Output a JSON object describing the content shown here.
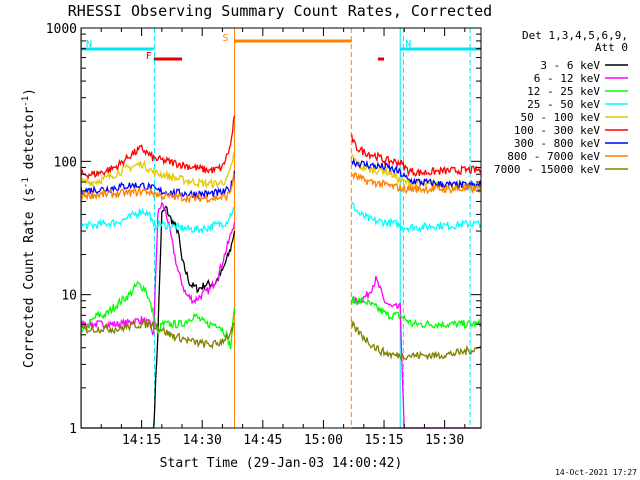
{
  "title": "RHESSI Observing Summary Count Rates, Corrected",
  "footer_date": "14-Oct-2021 17:27",
  "chart_data": {
    "type": "line",
    "title": "RHESSI Observing Summary Count Rates, Corrected",
    "xlabel": "Start Time (29-Jan-03 14:00:42)",
    "ylabel": "Corrected Count Rate (s⁻¹ detector⁻¹)",
    "ylabel_main": "Corrected Count Rate (s",
    "ylabel_exp1": "-1",
    "ylabel_mid": " detector",
    "ylabel_exp2": "-1",
    "ylabel_end": ")",
    "yscale": "log",
    "ylim": [
      1,
      1000
    ],
    "xlim_minutes": [
      0,
      99
    ],
    "x_ticks": [
      {
        "minute": 15,
        "label": "14:15"
      },
      {
        "minute": 30,
        "label": "14:30"
      },
      {
        "minute": 45,
        "label": "14:45"
      },
      {
        "minute": 60,
        "label": "15:00"
      },
      {
        "minute": 75,
        "label": "15:15"
      },
      {
        "minute": 90,
        "label": "15:30"
      }
    ],
    "y_ticks": [
      {
        "value": 1,
        "label": "1"
      },
      {
        "value": 10,
        "label": "10"
      },
      {
        "value": 100,
        "label": "100"
      },
      {
        "value": 1000,
        "label": "1000"
      }
    ],
    "legend_header": [
      "Det 1,3,4,5,6,9,",
      "Att 0"
    ],
    "flags": [
      {
        "label": "N",
        "color": "#00e5ee",
        "start": 0,
        "end": 18
      },
      {
        "label": "N",
        "color": "#00e5ee",
        "start": 79,
        "end": 99
      },
      {
        "label": "F",
        "color": "#e00000",
        "start": 18,
        "end": 25
      },
      {
        "label": "",
        "color": "#e00000",
        "start": 73.5,
        "end": 75
      },
      {
        "label": "S",
        "color": "#ff8000",
        "start": 38,
        "end": 67
      }
    ],
    "vlines": [
      {
        "minute": 18.2,
        "color": "#00e5ee",
        "dash": true
      },
      {
        "minute": 38.0,
        "color": "#ff8000",
        "dash": false
      },
      {
        "minute": 66.9,
        "color": "#ff8000",
        "dash": true
      },
      {
        "minute": 79.0,
        "color": "#00e5ee",
        "dash": false
      },
      {
        "minute": 79.8,
        "color": "#00e5ee",
        "dash": true
      },
      {
        "minute": 96.3,
        "color": "#00e5ee",
        "dash": true
      },
      {
        "minute": 0.1,
        "color": "#00e5ee",
        "dash": false
      }
    ],
    "gap": [
      38,
      67
    ],
    "series": [
      {
        "name": "3 - 6 keV",
        "color": "#000000",
        "x": [
          0,
          5,
          10,
          16,
          18,
          19,
          20,
          21,
          22,
          24,
          25,
          27,
          29,
          31,
          33,
          35,
          37,
          38,
          67,
          68,
          70,
          73,
          75,
          77,
          79,
          79.5,
          80,
          82,
          86,
          90,
          95,
          99
        ],
        "y": [
          1,
          1,
          1,
          1,
          1,
          5,
          40,
          45,
          38,
          30,
          18,
          12,
          11,
          12,
          12,
          15,
          22,
          30,
          1,
          1,
          1,
          1,
          1,
          1,
          1,
          1,
          1,
          1,
          1,
          1,
          1,
          1
        ]
      },
      {
        "name": "6 - 12 keV",
        "color": "#ff00ff",
        "x": [
          0,
          5,
          10,
          15,
          17,
          18,
          19,
          20,
          21,
          22,
          24,
          26,
          28,
          30,
          32,
          34,
          36,
          38,
          67,
          69,
          71,
          73,
          74,
          75,
          77,
          79,
          80,
          99
        ],
        "y": [
          6,
          6,
          6,
          6.5,
          6,
          5,
          40,
          48,
          42,
          30,
          15,
          10,
          9,
          10,
          11,
          14,
          22,
          35,
          9,
          9,
          10,
          13,
          11,
          9,
          8,
          8,
          1,
          1
        ]
      },
      {
        "name": "12 - 25 keV",
        "color": "#00ff00",
        "x": [
          0,
          2,
          4,
          6,
          8,
          10,
          12,
          14,
          16,
          18,
          19,
          20,
          22,
          25,
          28,
          31,
          34,
          36,
          37,
          38,
          67,
          70,
          73,
          76,
          79,
          82,
          86,
          90,
          94,
          99
        ],
        "y": [
          5,
          6,
          7,
          7,
          8,
          9,
          10,
          12,
          11,
          7,
          5,
          6,
          6,
          6,
          7,
          6,
          6,
          5,
          4,
          8,
          9,
          9,
          8,
          7,
          7,
          6,
          6,
          6,
          6,
          6
        ]
      },
      {
        "name": "25 - 50 keV",
        "color": "#00ffff",
        "x": [
          0,
          3,
          6,
          9,
          12,
          15,
          17,
          18,
          19,
          21,
          24,
          27,
          30,
          33,
          36,
          38,
          67,
          69,
          72,
          75,
          78,
          80,
          84,
          88,
          92,
          96,
          99
        ],
        "y": [
          33,
          33,
          34,
          35,
          38,
          43,
          40,
          32,
          34,
          33,
          32,
          31,
          31,
          33,
          35,
          45,
          48,
          40,
          36,
          35,
          34,
          32,
          32,
          33,
          33,
          34,
          34
        ]
      },
      {
        "name": "50 - 100 keV",
        "color": "#e6c800",
        "x": [
          0,
          3,
          6,
          9,
          12,
          15,
          17,
          18,
          20,
          24,
          28,
          31,
          34,
          36,
          37,
          38,
          67,
          69,
          72,
          75,
          77,
          79,
          82,
          86,
          90,
          94,
          99
        ],
        "y": [
          70,
          70,
          74,
          82,
          90,
          96,
          88,
          82,
          80,
          74,
          70,
          68,
          68,
          72,
          85,
          120,
          110,
          92,
          86,
          86,
          80,
          72,
          68,
          66,
          66,
          65,
          65
        ]
      },
      {
        "name": "100 - 300 keV",
        "color": "#ff0000",
        "x": [
          0,
          3,
          6,
          9,
          12,
          14,
          15,
          16,
          18,
          20,
          24,
          28,
          31,
          33,
          35,
          37,
          38,
          67,
          68,
          70,
          73,
          75,
          77,
          79,
          81,
          84,
          88,
          92,
          96,
          99
        ],
        "y": [
          80,
          80,
          84,
          92,
          110,
          120,
          125,
          118,
          105,
          102,
          96,
          90,
          86,
          86,
          90,
          130,
          220,
          150,
          128,
          118,
          110,
          102,
          100,
          98,
          85,
          82,
          84,
          85,
          86,
          86
        ]
      },
      {
        "name": "300 - 800 keV",
        "color": "#0000ff",
        "x": [
          0,
          3,
          6,
          9,
          12,
          15,
          17,
          19,
          23,
          27,
          31,
          35,
          37,
          38,
          67,
          70,
          73,
          76,
          79,
          81,
          84,
          88,
          92,
          96,
          99
        ],
        "y": [
          60,
          61,
          62,
          64,
          66,
          66,
          64,
          60,
          58,
          57,
          57,
          58,
          62,
          85,
          100,
          95,
          92,
          90,
          82,
          72,
          70,
          68,
          66,
          66,
          66
        ]
      },
      {
        "name": "800 - 7000 keV",
        "color": "#ff8000",
        "x": [
          0,
          4,
          8,
          12,
          16,
          18,
          20,
          24,
          28,
          32,
          36,
          37,
          38,
          67,
          70,
          74,
          78,
          80,
          84,
          88,
          92,
          96,
          99
        ],
        "y": [
          56,
          56,
          57,
          58,
          60,
          58,
          55,
          54,
          53,
          53,
          54,
          60,
          80,
          80,
          72,
          68,
          64,
          62,
          62,
          62,
          62,
          62,
          62
        ]
      },
      {
        "name": "7000 - 15000 keV",
        "color": "#808000",
        "x": [
          0,
          3,
          6,
          9,
          12,
          15,
          18,
          20,
          22,
          24,
          26,
          28,
          30,
          32,
          34,
          36,
          37,
          38,
          67,
          68,
          70,
          72,
          74,
          76,
          78,
          80,
          84,
          88,
          92,
          96,
          99
        ],
        "y": [
          5.5,
          5.5,
          5.6,
          5.5,
          5.8,
          6,
          6,
          5.5,
          5,
          4.8,
          4.6,
          4.4,
          4.3,
          4.2,
          4.3,
          4.8,
          5,
          6,
          6,
          5.5,
          4.8,
          4.2,
          3.8,
          3.6,
          3.5,
          3.5,
          3.5,
          3.5,
          3.6,
          3.8,
          4
        ]
      }
    ],
    "legend": [
      {
        "label": "3 - 6 keV",
        "color": "#000000"
      },
      {
        "label": "6 - 12 keV",
        "color": "#ff00ff"
      },
      {
        "label": "12 - 25 keV",
        "color": "#00ff00"
      },
      {
        "label": "25 - 50 keV",
        "color": "#00ffff"
      },
      {
        "label": "50 - 100 keV",
        "color": "#e6c800"
      },
      {
        "label": "100 - 300 keV",
        "color": "#ff0000"
      },
      {
        "label": "300 - 800 keV",
        "color": "#0000ff"
      },
      {
        "label": "800 - 7000 keV",
        "color": "#ff8000"
      },
      {
        "label": "7000 - 15000 keV",
        "color": "#808000"
      }
    ],
    "grid": false,
    "legend_position": "top-right"
  }
}
